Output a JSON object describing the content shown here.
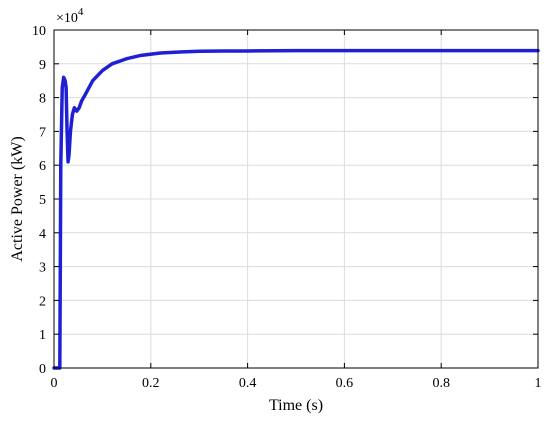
{
  "chart_data": {
    "type": "line",
    "xlabel": "Time (s)",
    "ylabel": "Active Power (kW)",
    "y_multiplier_label": "×10",
    "y_multiplier_exponent": "4",
    "xlim": [
      0,
      1
    ],
    "ylim": [
      0,
      10
    ],
    "x_ticks": [
      0,
      0.2,
      0.4,
      0.6,
      0.8,
      1
    ],
    "x_tick_labels": [
      "0",
      "0.2",
      "0.4",
      "0.6",
      "0.8",
      "1"
    ],
    "y_ticks": [
      0,
      1,
      2,
      3,
      4,
      5,
      6,
      7,
      8,
      9,
      10
    ],
    "y_tick_labels": [
      "0",
      "1",
      "2",
      "3",
      "4",
      "5",
      "6",
      "7",
      "8",
      "9",
      "10"
    ],
    "grid": true,
    "series": [
      {
        "color": "#1f1fd6",
        "x": [
          0,
          0.012,
          0.014,
          0.017,
          0.02,
          0.023,
          0.025,
          0.027,
          0.029,
          0.031,
          0.034,
          0.038,
          0.042,
          0.047,
          0.052,
          0.057,
          0.065,
          0.08,
          0.1,
          0.12,
          0.15,
          0.18,
          0.22,
          0.26,
          0.3,
          0.35,
          0.4,
          0.5,
          0.6,
          0.7,
          0.8,
          0.9,
          1.0
        ],
        "y": [
          0,
          0,
          6.0,
          8.3,
          8.6,
          8.5,
          8.3,
          7.0,
          6.1,
          6.3,
          7.0,
          7.5,
          7.7,
          7.6,
          7.7,
          7.9,
          8.1,
          8.5,
          8.8,
          9.0,
          9.15,
          9.25,
          9.32,
          9.35,
          9.37,
          9.38,
          9.38,
          9.39,
          9.39,
          9.39,
          9.39,
          9.39,
          9.39
        ]
      }
    ]
  }
}
